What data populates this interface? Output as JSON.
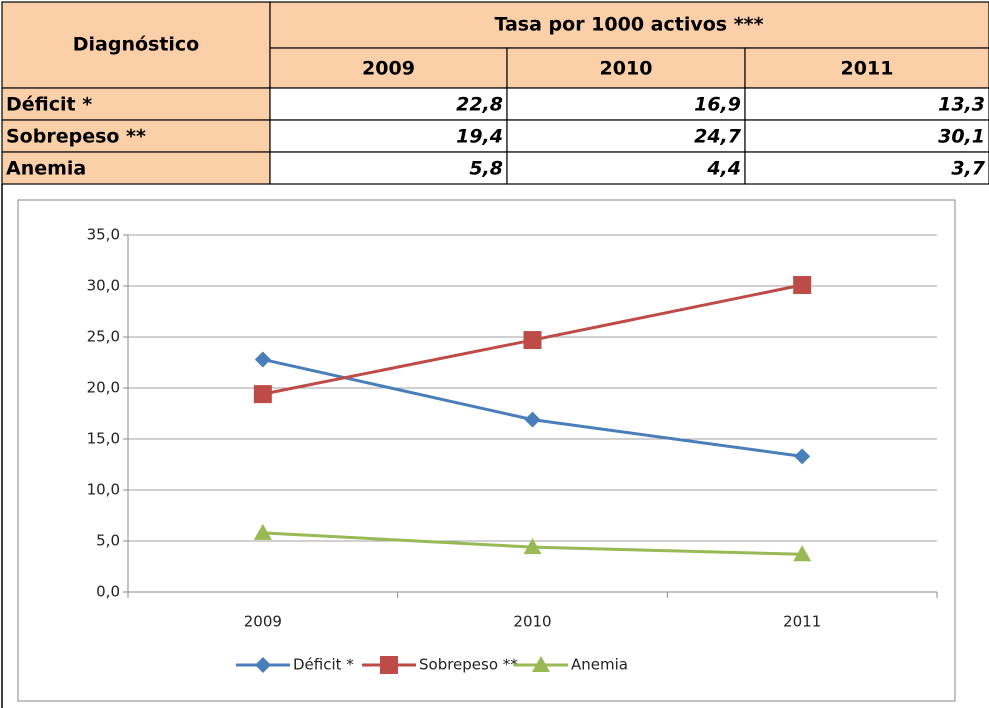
{
  "table": {
    "header": {
      "diagnosis": "Diagnóstico",
      "rate": "Tasa por 1000 activos ***",
      "years": [
        "2009",
        "2010",
        "2011"
      ]
    },
    "rows": [
      [
        "Déficit *",
        "22,8",
        "16,9",
        "13,3"
      ],
      [
        "Sobrepeso **",
        "19,4",
        "24,7",
        "30,1"
      ],
      [
        "Anemia",
        "5,8",
        "4,4",
        "3,7"
      ]
    ]
  },
  "chart_data": {
    "type": "line",
    "categories": [
      "2009",
      "2010",
      "2011"
    ],
    "series": [
      {
        "name": "Déficit *",
        "color": "#4a7ebb",
        "marker": "diamond",
        "values": [
          22.8,
          16.9,
          13.3
        ]
      },
      {
        "name": "Sobrepeso **",
        "color": "#be4b48",
        "marker": "square",
        "values": [
          19.4,
          24.7,
          30.1
        ]
      },
      {
        "name": "Anemia",
        "color": "#98b954",
        "marker": "triangle",
        "values": [
          5.8,
          4.4,
          3.7
        ]
      }
    ],
    "ylim": [
      0,
      35
    ],
    "yticks": [
      {
        "value": 0,
        "label": "0,0"
      },
      {
        "value": 5,
        "label": "5,0"
      },
      {
        "value": 10,
        "label": "10,0"
      },
      {
        "value": 15,
        "label": "15,0"
      },
      {
        "value": 20,
        "label": "20,0"
      },
      {
        "value": 25,
        "label": "25,0"
      },
      {
        "value": 30,
        "label": "30,0"
      },
      {
        "value": 35,
        "label": "35,0"
      }
    ],
    "grid": true,
    "legend": "bottom"
  }
}
